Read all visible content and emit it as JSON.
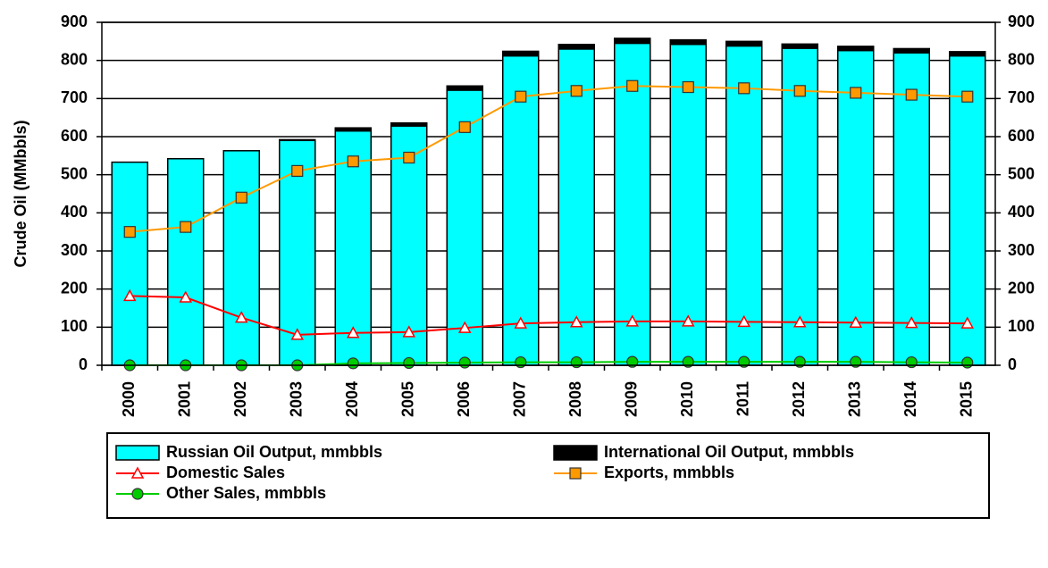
{
  "chart_data": {
    "type": "bar",
    "y_label": "Crude Oil (MMbbls)",
    "categories": [
      "2000",
      "2001",
      "2002",
      "2003",
      "2004",
      "2005",
      "2006",
      "2007",
      "2008",
      "2009",
      "2010",
      "2011",
      "2012",
      "2013",
      "2014",
      "2015"
    ],
    "series": [
      {
        "name": "Russian Oil Output, mmbbls",
        "kind": "bar",
        "color": "#00ffff",
        "values": [
          533,
          542,
          563,
          590,
          615,
          628,
          722,
          812,
          830,
          845,
          842,
          838,
          832,
          826,
          820,
          812
        ]
      },
      {
        "name": "International Oil Output, mmbbls",
        "kind": "bar",
        "color": "#000000",
        "values": [
          0,
          0,
          0,
          2,
          8,
          8,
          11,
          12,
          12,
          13,
          12,
          12,
          11,
          11,
          11,
          11
        ]
      },
      {
        "name": "Domestic Sales",
        "kind": "line",
        "marker": "triangle",
        "color": "#ff0000",
        "values": [
          182,
          178,
          125,
          80,
          85,
          87,
          98,
          110,
          113,
          115,
          115,
          114,
          113,
          112,
          111,
          110
        ]
      },
      {
        "name": "Exports, mmbbls",
        "kind": "line",
        "marker": "square",
        "color": "#ff9900",
        "values": [
          350,
          363,
          440,
          510,
          535,
          545,
          625,
          705,
          720,
          733,
          730,
          727,
          720,
          715,
          710,
          705
        ]
      },
      {
        "name": "Other Sales, mmbbls",
        "kind": "line",
        "marker": "circle",
        "color": "#00cc00",
        "values": [
          0,
          0,
          0,
          0,
          5,
          6,
          7,
          8,
          8,
          9,
          9,
          9,
          9,
          9,
          8,
          7
        ]
      }
    ],
    "stacked": true,
    "ylim": [
      0,
      900
    ],
    "yticks": [
      0,
      100,
      200,
      300,
      400,
      500,
      600,
      700,
      800,
      900
    ],
    "y2lim": [
      0,
      900
    ],
    "y2ticks": [
      0,
      100,
      200,
      300,
      400,
      500,
      600,
      700,
      800,
      900
    ],
    "grid": true
  }
}
